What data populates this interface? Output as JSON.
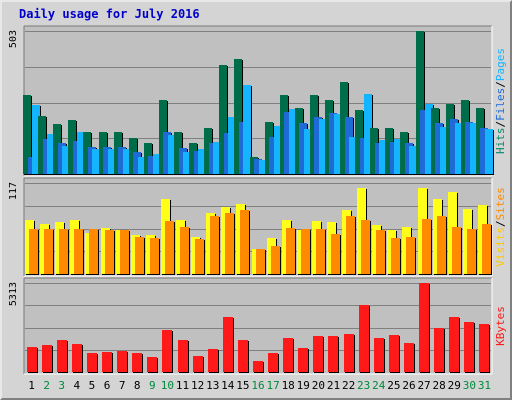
{
  "chart_data": {
    "type": "bar",
    "title": "Daily usage for July 2016",
    "days": [
      "1",
      "2",
      "3",
      "4",
      "5",
      "6",
      "7",
      "8",
      "9",
      "10",
      "11",
      "12",
      "13",
      "14",
      "15",
      "16",
      "17",
      "18",
      "19",
      "20",
      "21",
      "22",
      "23",
      "24",
      "25",
      "26",
      "27",
      "28",
      "29",
      "30",
      "31"
    ],
    "weekend_days": [
      2,
      3,
      9,
      10,
      16,
      17,
      23,
      24,
      30,
      31
    ],
    "panels": [
      {
        "id": "top",
        "ymax": 503,
        "max_label": "503",
        "series": [
          {
            "name": "Hits",
            "color": "#006d4a",
            "values": [
              279,
              205,
              177,
              190,
              147,
              147,
              148,
              127,
              110,
              262,
              147,
              108,
              162,
              385,
              403,
              60,
              183,
              279,
              233,
              279,
              262,
              325,
              226,
              162,
              162,
              147,
              503,
              233,
              245,
              262,
              233
            ]
          },
          {
            "name": "Files",
            "color": "#1e6ad6",
            "values": [
              60,
              124,
              110,
              115,
              96,
              96,
              96,
              77,
              62,
              147,
              92,
              81,
              110,
              144,
              182,
              53,
              131,
              217,
              179,
              199,
              213,
              199,
              127,
              110,
              113,
              110,
              224,
              179,
              193,
              182,
              162
            ]
          },
          {
            "name": "Pages",
            "color": "#14b4ff",
            "values": [
              242,
              142,
              98,
              147,
              89,
              89,
              87,
              60,
              70,
              138,
              78,
              87,
              111,
              200,
              313,
              50,
              168,
              227,
              160,
              195,
              210,
              130,
              280,
              118,
              122,
              98,
              245,
              164,
              181,
              178,
              159
            ]
          }
        ],
        "legend": [
          {
            "text": "Hits",
            "color": "#008a6a"
          },
          {
            "text": "Files",
            "color": "#1e6ad6"
          },
          {
            "text": "Pages",
            "color": "#14b4ff"
          }
        ]
      },
      {
        "id": "mid",
        "ymax": 117,
        "max_label": "117",
        "series": [
          {
            "name": "Visits",
            "color": "#ffff19",
            "values": [
              70,
              64,
              67,
              70,
              53,
              59,
              57,
              50,
              50,
              97,
              70,
              48,
              79,
              86,
              90,
              32,
              46,
              70,
              57,
              68,
              67,
              82,
              110,
              63,
              56,
              60,
              110,
              97,
              105,
              83,
              89
            ]
          },
          {
            "name": "Sites",
            "color": "#ff8a00",
            "values": [
              58,
              58,
              58,
              58,
              58,
              57,
              56,
              48,
              46,
              68,
              61,
              45,
              74,
              79,
              82,
              32,
              36,
              59,
              58,
              58,
              52,
              74,
              69,
              56,
              46,
              48,
              71,
              74,
              61,
              58,
              64
            ]
          }
        ],
        "legend": [
          {
            "text": "Visits",
            "color": "#ffc800"
          },
          {
            "text": "Sites",
            "color": "#ff8a00"
          }
        ]
      },
      {
        "id": "bot",
        "ymax": 5313,
        "max_label": "5313",
        "series": [
          {
            "name": "KBytes",
            "color": "#ff1919",
            "values": [
              1510,
              1590,
              1890,
              1650,
              1110,
              1190,
              1270,
              1150,
              900,
              2490,
              1930,
              950,
              1350,
              3300,
              1930,
              630,
              1110,
              2010,
              1430,
              2170,
              2130,
              2290,
              3970,
              2050,
              2210,
              1750,
              5313,
              2650,
              3300,
              3010,
              2860
            ]
          }
        ],
        "legend": [
          {
            "text": "KBytes",
            "color": "#ff1919"
          }
        ]
      }
    ]
  }
}
